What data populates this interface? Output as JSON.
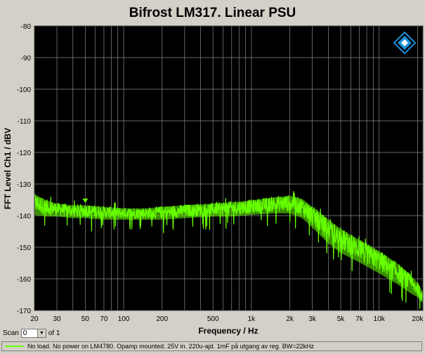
{
  "chart_data": {
    "type": "line",
    "title": "Bifrost LM317. Linear PSU",
    "xlabel": "Frequency / Hz",
    "ylabel": "FFT Level Ch1 / dBV",
    "xscale": "log",
    "xlim": [
      20,
      22000
    ],
    "ylim": [
      -170,
      -80
    ],
    "x_ticks": [
      20,
      30,
      50,
      70,
      100,
      200,
      500,
      1000,
      2000,
      3000,
      5000,
      7000,
      10000,
      20000
    ],
    "x_tick_labels": [
      "20",
      "30",
      "50",
      "70",
      "100",
      "200",
      "500",
      "1k",
      "2k",
      "3k",
      "5k",
      "7k",
      "10k",
      "20k"
    ],
    "y_ticks": [
      -80,
      -90,
      -100,
      -110,
      -120,
      -130,
      -140,
      -150,
      -160,
      -170
    ],
    "y_tick_labels": [
      "-80",
      "-90",
      "-100",
      "-110",
      "-120",
      "-130",
      "-140",
      "-150",
      "-160",
      "-170"
    ],
    "grid": true,
    "background": "#000000",
    "series": [
      {
        "name": "No load. No power on LM4780. Opamp mounted. 25V in. 220u-ajd. 1mF på utgang av reg. BW=22kHz",
        "color": "#66ff00",
        "x": [
          20,
          25,
          30,
          40,
          50,
          70,
          100,
          150,
          200,
          300,
          500,
          700,
          1000,
          1500,
          2000,
          2500,
          3000,
          4000,
          5000,
          7000,
          10000,
          14000,
          18000,
          20000,
          22000
        ],
        "y_upper": [
          -133,
          -135,
          -136,
          -136.5,
          -136.5,
          -137,
          -137.5,
          -137.5,
          -137,
          -136.5,
          -136,
          -135.5,
          -135,
          -134,
          -133.5,
          -134.5,
          -137,
          -141,
          -144,
          -147.5,
          -151,
          -155,
          -159,
          -161,
          -164
        ],
        "y_lower": [
          -140,
          -140.5,
          -140.5,
          -141,
          -141,
          -141.5,
          -141.5,
          -141.5,
          -141.5,
          -141,
          -140.5,
          -140.5,
          -140,
          -139.5,
          -139.5,
          -141,
          -144,
          -149,
          -152,
          -155,
          -158.5,
          -162,
          -165,
          -166,
          -168
        ]
      }
    ],
    "marker": {
      "x": 50,
      "y": -135.5
    }
  },
  "scan": {
    "label": "Scan",
    "value": "0",
    "of_label": "of 1",
    "arrow": "▼"
  },
  "colors": {
    "grid": "#8a8a8a",
    "trace": "#66ff00",
    "logo": "#1a8fd6"
  },
  "logo": {
    "icon": "ap-logo-icon"
  }
}
